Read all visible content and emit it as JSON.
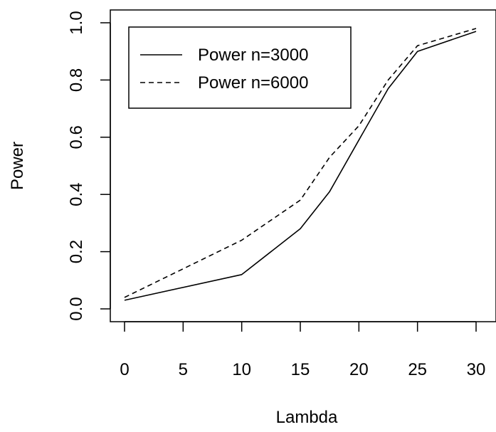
{
  "chart_data": {
    "type": "line",
    "title": "",
    "xlabel": "Lambda",
    "ylabel": "Power",
    "xlim": [
      0,
      30
    ],
    "ylim": [
      0,
      1
    ],
    "xticks": [
      0,
      5,
      10,
      15,
      20,
      25,
      30
    ],
    "xtick_labels": [
      "0",
      "5",
      "10",
      "15",
      "20",
      "25",
      "30"
    ],
    "yticks": [
      0,
      0.2,
      0.4,
      0.6,
      0.8,
      1.0
    ],
    "ytick_labels": [
      "0.0",
      "0.2",
      "0.4",
      "0.6",
      "0.8",
      "1.0"
    ],
    "grid": false,
    "legend_position": "top-left",
    "series": [
      {
        "name": "Power n=3000",
        "line_style": "solid",
        "color": "#000000",
        "x": [
          0,
          10,
          15,
          17.5,
          20,
          22.5,
          25,
          30
        ],
        "y": [
          0.03,
          0.12,
          0.28,
          0.41,
          0.59,
          0.77,
          0.9,
          0.97
        ]
      },
      {
        "name": "Power n=6000",
        "line_style": "dashed",
        "color": "#000000",
        "x": [
          0,
          10,
          15,
          17.5,
          20,
          22.5,
          25,
          30
        ],
        "y": [
          0.04,
          0.24,
          0.38,
          0.53,
          0.64,
          0.8,
          0.92,
          0.98
        ]
      }
    ]
  }
}
